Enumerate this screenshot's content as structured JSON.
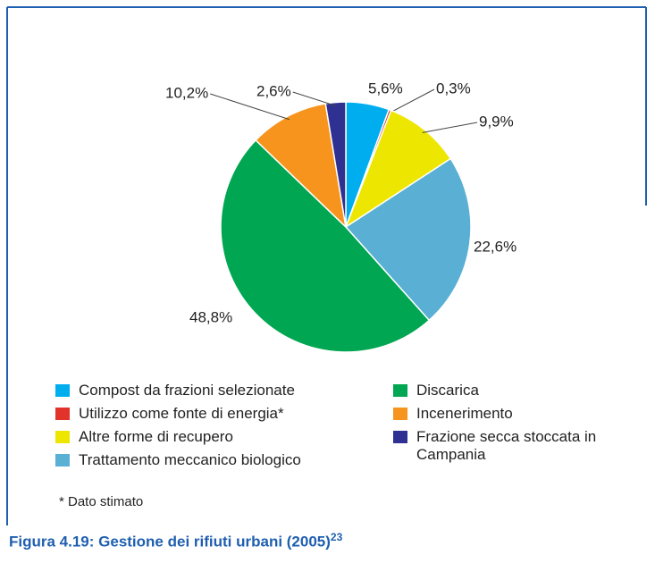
{
  "chart_data": {
    "type": "pie",
    "title": "Figura 4.19: Gestione dei rifiuti urbani (2005)",
    "title_note": "23",
    "note": "* Dato stimato",
    "categories": [
      "Compost da frazioni selezionate",
      "Utilizzo come fonte di energia*",
      "Altre forme di recupero",
      "Trattamento meccanico biologico",
      "Discarica",
      "Incenerimento",
      "Frazione secca stoccata in Campania"
    ],
    "values": [
      5.6,
      0.3,
      9.9,
      22.6,
      48.8,
      10.2,
      2.6
    ],
    "value_labels": [
      "5,6%",
      "0,3%",
      "9,9%",
      "22,6%",
      "48,8%",
      "10,2%",
      "2,6%"
    ],
    "colors": [
      "#00aeef",
      "#e2332b",
      "#ede600",
      "#5aafd4",
      "#00a651",
      "#f7941d",
      "#2e3192"
    ]
  }
}
